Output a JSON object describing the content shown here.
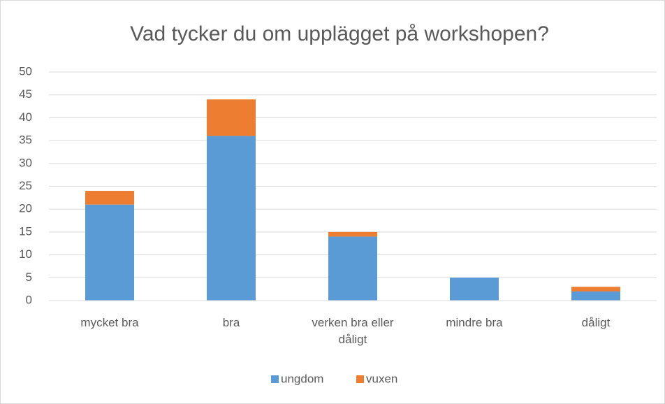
{
  "chart_data": {
    "type": "stacked_bar",
    "title": "Vad tycker du om upplägget på workshopen?",
    "categories": [
      "mycket bra",
      "bra",
      "verken bra eller dåligt",
      "mindre bra",
      "dåligt"
    ],
    "series": [
      {
        "name": "ungdom",
        "color": "#5b9bd5",
        "values": [
          21,
          36,
          14,
          5,
          2
        ]
      },
      {
        "name": "vuxen",
        "color": "#ed7d31",
        "values": [
          3,
          8,
          1,
          0,
          1
        ]
      }
    ],
    "ylim": [
      0,
      50
    ],
    "yticks": [
      0,
      5,
      10,
      15,
      20,
      25,
      30,
      35,
      40,
      45,
      50
    ],
    "grid": true,
    "legend": "bottom"
  }
}
